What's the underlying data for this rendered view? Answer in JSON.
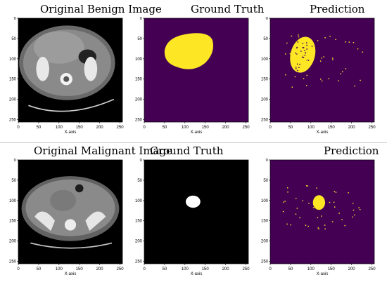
{
  "rows": [
    {
      "titles": {
        "original": "Original Benign Image",
        "ground_truth": "Ground Truth",
        "prediction": "Prediction"
      }
    },
    {
      "titles": {
        "original": "Original Malignant Image",
        "ground_truth": "Ground Truth",
        "prediction": "Prediction"
      }
    }
  ],
  "axes": {
    "xlabel": "X-axis",
    "y_ticks": [
      "0",
      "50",
      "100",
      "150",
      "200",
      "250"
    ],
    "x_ticks": [
      "0",
      "50",
      "100",
      "150",
      "200",
      "250"
    ]
  },
  "colors": {
    "mask_background_viridis": "#440154",
    "mask_foreground_viridis": "#fde725",
    "mask_background_gray": "#000000",
    "mask_foreground_gray": "#ffffff",
    "ct_background": "#000000"
  }
}
